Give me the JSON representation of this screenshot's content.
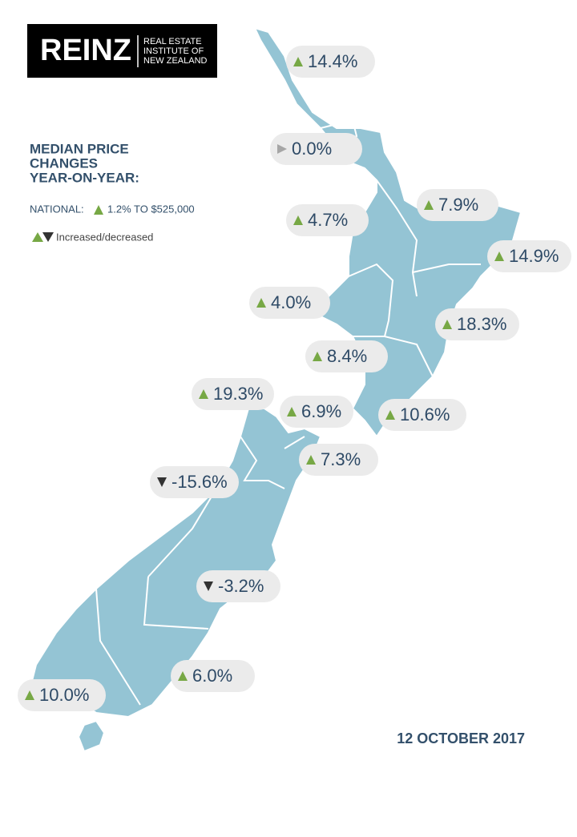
{
  "header": {
    "logo": "REINZ",
    "logo_lines": [
      "REAL ESTATE",
      "INSTITUTE OF",
      "NEW ZEALAND"
    ]
  },
  "title_lines": [
    "MEDIAN PRICE",
    "CHANGES",
    "YEAR-ON-YEAR:"
  ],
  "national": {
    "label": "NATIONAL:",
    "direction": "up",
    "text": "1.2% TO $525,000"
  },
  "legend": {
    "text": "Increased/decreased",
    "colors": {
      "up": "#77a845",
      "down": "#333333",
      "flat": "#a6a6a6"
    }
  },
  "regions": [
    {
      "label": "14.4%",
      "direction": "up"
    },
    {
      "label": "0.0%",
      "direction": "flat"
    },
    {
      "label": "7.9%",
      "direction": "up"
    },
    {
      "label": "4.7%",
      "direction": "up"
    },
    {
      "label": "14.9%",
      "direction": "up"
    },
    {
      "label": "4.0%",
      "direction": "up"
    },
    {
      "label": "18.3%",
      "direction": "up"
    },
    {
      "label": "8.4%",
      "direction": "up"
    },
    {
      "label": "19.3%",
      "direction": "up"
    },
    {
      "label": "6.9%",
      "direction": "up"
    },
    {
      "label": "10.6%",
      "direction": "up"
    },
    {
      "label": "7.3%",
      "direction": "up"
    },
    {
      "label": "-15.6%",
      "direction": "down"
    },
    {
      "label": "-3.2%",
      "direction": "down"
    },
    {
      "label": "6.0%",
      "direction": "up"
    },
    {
      "label": "10.0%",
      "direction": "up"
    }
  ],
  "date": "12 OCTOBER 2017"
}
